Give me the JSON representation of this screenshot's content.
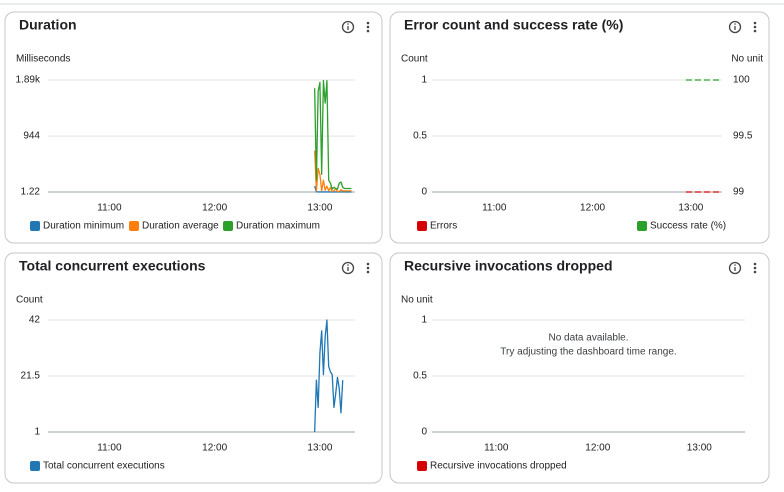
{
  "chart_data": [
    {
      "type": "line",
      "title": "Duration",
      "y_label": "Milliseconds",
      "xlim": [
        625,
        800
      ],
      "xticks": [
        {
          "value": 660,
          "label": "11:00"
        },
        {
          "value": 720,
          "label": "12:00"
        },
        {
          "value": 780,
          "label": "13:00"
        }
      ],
      "ylim": [
        1.22,
        1890
      ],
      "yticks": [
        1.22,
        944,
        {
          "value": 1890,
          "label": "1.89k"
        }
      ],
      "grid": true,
      "x": [
        777,
        778,
        779,
        780,
        781,
        782,
        783,
        784,
        785,
        786,
        787,
        788,
        789,
        790,
        791,
        792,
        793,
        794,
        795,
        796,
        797,
        798
      ],
      "series": [
        {
          "name": "Duration minimum",
          "color": "#1f77b4",
          "values": [
            100,
            5,
            2,
            2,
            2,
            2,
            2,
            2,
            2,
            2,
            2,
            2,
            2,
            2,
            2,
            2,
            2,
            2,
            2,
            2,
            2,
            2
          ]
        },
        {
          "name": "Duration average",
          "color": "#ff7f0e",
          "values": [
            700,
            20,
            400,
            300,
            20,
            200,
            30,
            100,
            20,
            80,
            10,
            20,
            60,
            10,
            10,
            40,
            20,
            20,
            20,
            20,
            20,
            20
          ]
        },
        {
          "name": "Duration maximum",
          "color": "#2ca02c",
          "values": [
            1750,
            200,
            1700,
            1850,
            300,
            1880,
            1500,
            1880,
            200,
            150,
            50,
            80,
            60,
            50,
            150,
            170,
            80,
            60,
            60,
            60,
            60,
            60
          ]
        }
      ]
    },
    {
      "type": "line",
      "title": "Error count and success rate (%)",
      "y_label": "Count",
      "y2_label": "No unit",
      "xlim": [
        622,
        799
      ],
      "xticks": [
        {
          "value": 660,
          "label": "11:00"
        },
        {
          "value": 720,
          "label": "12:00"
        },
        {
          "value": 780,
          "label": "13:00"
        }
      ],
      "ylim": [
        0,
        1
      ],
      "yticks": [
        0,
        0.5,
        1
      ],
      "y2lim": [
        99,
        100
      ],
      "y2ticks": [
        99,
        99.5,
        100
      ],
      "grid": true,
      "x": [
        777,
        788,
        799
      ],
      "series": [
        {
          "name": "Errors",
          "color": "#d50000",
          "dashed": true,
          "values": [
            0,
            0,
            0
          ]
        },
        {
          "name": "Success rate (%)",
          "color": "#2ca02c",
          "dashed": true,
          "axis": "y2",
          "values": [
            100,
            100,
            100
          ]
        }
      ]
    },
    {
      "type": "line",
      "title": "Total concurrent executions",
      "y_label": "Count",
      "xlim": [
        625,
        800
      ],
      "xticks": [
        {
          "value": 660,
          "label": "11:00"
        },
        {
          "value": 720,
          "label": "12:00"
        },
        {
          "value": 780,
          "label": "13:00"
        }
      ],
      "ylim": [
        1,
        42
      ],
      "yticks": [
        1,
        21.5,
        42
      ],
      "grid": true,
      "x": [
        777,
        778,
        779,
        780,
        781,
        782,
        783,
        784,
        785,
        786,
        787,
        788,
        789,
        790,
        791,
        792,
        793,
        794,
        795,
        796,
        797
      ],
      "series": [
        {
          "name": "Total concurrent executions",
          "color": "#1f77b4",
          "values": [
            1,
            20,
            10,
            30,
            38,
            22,
            36,
            42,
            25,
            23,
            22,
            10,
            15,
            21,
            17,
            8,
            20,
            null,
            null,
            null,
            null
          ]
        }
      ]
    },
    {
      "type": "line",
      "title": "Recursive invocations dropped",
      "y_label": "No unit",
      "annotations": [
        "No data available.",
        "Try adjusting the dashboard time range."
      ],
      "xlim": [
        622,
        807
      ],
      "xticks": [
        {
          "value": 660,
          "label": "11:00"
        },
        {
          "value": 720,
          "label": "12:00"
        },
        {
          "value": 780,
          "label": "13:00"
        }
      ],
      "ylim": [
        0,
        1
      ],
      "yticks": [
        0,
        0.5,
        1
      ],
      "grid": true,
      "x": [],
      "series": [
        {
          "name": "Recursive invocations dropped",
          "color": "#d50000",
          "values": []
        }
      ]
    }
  ]
}
